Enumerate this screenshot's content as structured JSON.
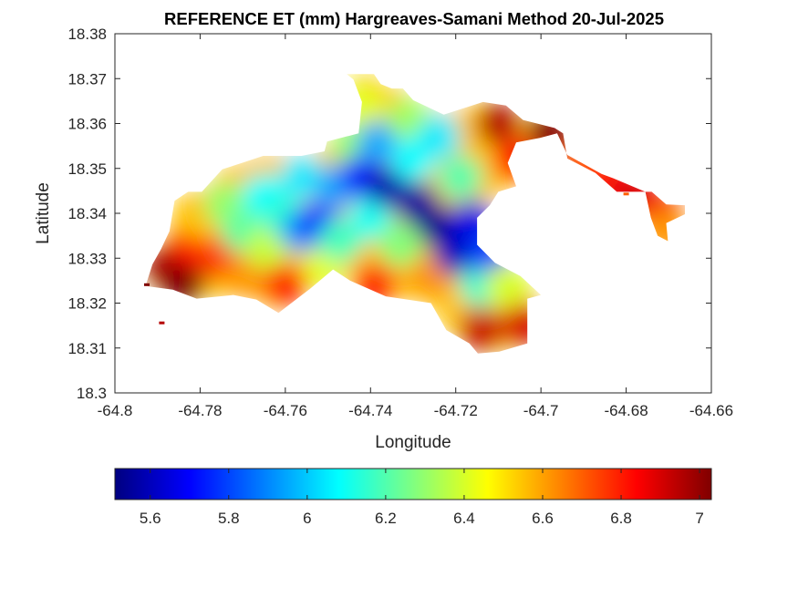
{
  "chart_data": {
    "type": "heatmap",
    "title": "REFERENCE ET (mm) Hargreaves-Samani Method  20-Jul-2025",
    "xlabel": "Longitude",
    "ylabel": "Latitude",
    "xlim": [
      -64.8,
      -64.66
    ],
    "ylim": [
      18.3,
      18.38
    ],
    "x_ticks": [
      -64.8,
      -64.78,
      -64.76,
      -64.74,
      -64.72,
      -64.7,
      -64.68,
      -64.66
    ],
    "x_tick_labels": [
      "-64.8",
      "-64.78",
      "-64.76",
      "-64.74",
      "-64.72",
      "-64.7",
      "-64.68",
      "-64.66"
    ],
    "y_ticks": [
      18.3,
      18.31,
      18.32,
      18.33,
      18.34,
      18.35,
      18.36,
      18.37,
      18.38
    ],
    "y_tick_labels": [
      "18.3",
      "18.31",
      "18.32",
      "18.33",
      "18.34",
      "18.35",
      "18.36",
      "18.37",
      "18.38"
    ],
    "colorbar": {
      "colormap": "jet",
      "range": [
        5.51,
        7.03
      ],
      "ticks": [
        5.6,
        5.8,
        6.0,
        6.2,
        6.4,
        6.6,
        6.8,
        7.0
      ],
      "tick_labels": [
        "5.6",
        "5.8",
        "6",
        "6.2",
        "6.4",
        "6.6",
        "6.8",
        "7"
      ],
      "orientation": "horizontal",
      "placement": "bottom"
    },
    "field": {
      "description_value_units": "mm",
      "outline": [
        [
          -64.7928,
          18.3238
        ],
        [
          -64.7912,
          18.3286
        ],
        [
          -64.7892,
          18.332
        ],
        [
          -64.7872,
          18.336
        ],
        [
          -64.786,
          18.3428
        ],
        [
          -64.7828,
          18.3448
        ],
        [
          -64.7796,
          18.3448
        ],
        [
          -64.7748,
          18.3498
        ],
        [
          -64.7702,
          18.3512
        ],
        [
          -64.7652,
          18.3528
        ],
        [
          -64.7562,
          18.3528
        ],
        [
          -64.7508,
          18.3538
        ],
        [
          -64.7502,
          18.356
        ],
        [
          -64.7428,
          18.3578
        ],
        [
          -64.742,
          18.3648
        ],
        [
          -64.744,
          18.3698
        ],
        [
          -64.7456,
          18.371
        ],
        [
          -64.7392,
          18.371
        ],
        [
          -64.7376,
          18.3688
        ],
        [
          -64.735,
          18.3678
        ],
        [
          -64.7324,
          18.3678
        ],
        [
          -64.73,
          18.3652
        ],
        [
          -64.7228,
          18.362
        ],
        [
          -64.7136,
          18.3648
        ],
        [
          -64.7082,
          18.364
        ],
        [
          -64.7042,
          18.3608
        ],
        [
          -64.6968,
          18.359
        ],
        [
          -64.6948,
          18.3578
        ],
        [
          -64.6938,
          18.3522
        ],
        [
          -64.6872,
          18.349
        ],
        [
          -64.6822,
          18.3448
        ],
        [
          -64.674,
          18.3448
        ],
        [
          -64.6706,
          18.342
        ],
        [
          -64.6662,
          18.3418
        ],
        [
          -64.6662,
          18.3398
        ],
        [
          -64.6706,
          18.3378
        ],
        [
          -64.6702,
          18.3338
        ],
        [
          -64.6726,
          18.335
        ],
        [
          -64.6742,
          18.339
        ],
        [
          -64.6755,
          18.3448
        ],
        [
          -64.683,
          18.3478
        ],
        [
          -64.6858,
          18.3488
        ],
        [
          -64.6938,
          18.353
        ],
        [
          -64.6962,
          18.3578
        ],
        [
          -64.7002,
          18.3568
        ],
        [
          -64.7058,
          18.3558
        ],
        [
          -64.7078,
          18.3512
        ],
        [
          -64.7058,
          18.346
        ],
        [
          -64.71,
          18.3448
        ],
        [
          -64.712,
          18.3418
        ],
        [
          -64.715,
          18.339
        ],
        [
          -64.715,
          18.333
        ],
        [
          -64.7108,
          18.329
        ],
        [
          -64.7048,
          18.326
        ],
        [
          -64.7,
          18.3218
        ],
        [
          -64.7032,
          18.321
        ],
        [
          -64.7032,
          18.311
        ],
        [
          -64.7098,
          18.3092
        ],
        [
          -64.7148,
          18.3088
        ],
        [
          -64.7168,
          18.311
        ],
        [
          -64.7222,
          18.314
        ],
        [
          -64.724,
          18.317
        ],
        [
          -64.7258,
          18.32
        ],
        [
          -64.7364,
          18.3215
        ],
        [
          -64.7448,
          18.325
        ],
        [
          -64.7488,
          18.3275
        ],
        [
          -64.7542,
          18.3232
        ],
        [
          -64.7616,
          18.3178
        ],
        [
          -64.7668,
          18.3208
        ],
        [
          -64.7722,
          18.3218
        ],
        [
          -64.7808,
          18.321
        ],
        [
          -64.7864,
          18.323
        ]
      ],
      "cells": [
        [
          -64.788,
          18.328,
          6.96
        ],
        [
          -64.784,
          18.3245,
          7.03
        ],
        [
          -64.782,
          18.333,
          6.82
        ],
        [
          -64.78,
          18.339,
          6.55
        ],
        [
          -64.776,
          18.33,
          6.75
        ],
        [
          -64.774,
          18.342,
          6.3
        ],
        [
          -64.77,
          18.336,
          6.22
        ],
        [
          -64.769,
          18.326,
          6.62
        ],
        [
          -64.765,
          18.344,
          6.08
        ],
        [
          -64.764,
          18.332,
          6.38
        ],
        [
          -64.76,
          18.324,
          6.8
        ],
        [
          -64.76,
          18.339,
          6.15
        ],
        [
          -64.756,
          18.348,
          6.05
        ],
        [
          -64.756,
          18.336,
          5.92
        ],
        [
          -64.752,
          18.338,
          5.76
        ],
        [
          -64.751,
          18.328,
          6.42
        ],
        [
          -64.748,
          18.346,
          5.95
        ],
        [
          -64.747,
          18.334,
          6.18
        ],
        [
          -64.744,
          18.355,
          6.3
        ],
        [
          -64.742,
          18.364,
          6.42
        ],
        [
          -64.742,
          18.348,
          5.72
        ],
        [
          -64.74,
          18.339,
          6.1
        ],
        [
          -64.739,
          18.324,
          6.78
        ],
        [
          -64.738,
          18.356,
          5.95
        ],
        [
          -64.736,
          18.346,
          5.58
        ],
        [
          -64.733,
          18.333,
          6.28
        ],
        [
          -64.731,
          18.361,
          6.32
        ],
        [
          -64.73,
          18.352,
          6.08
        ],
        [
          -64.729,
          18.342,
          5.56
        ],
        [
          -64.726,
          18.326,
          6.62
        ],
        [
          -64.724,
          18.337,
          5.53
        ],
        [
          -64.724,
          18.357,
          6.05
        ],
        [
          -64.72,
          18.331,
          5.6
        ],
        [
          -64.719,
          18.348,
          6.2
        ],
        [
          -64.716,
          18.338,
          5.66
        ],
        [
          -64.714,
          18.324,
          6.15
        ],
        [
          -64.714,
          18.314,
          6.92
        ],
        [
          -64.712,
          18.331,
          5.8
        ],
        [
          -64.71,
          18.36,
          6.95
        ],
        [
          -64.708,
          18.324,
          6.4
        ],
        [
          -64.706,
          18.352,
          6.82
        ],
        [
          -64.704,
          18.315,
          6.9
        ],
        [
          -64.698,
          18.358,
          7.02
        ],
        [
          -64.69,
          18.352,
          6.72
        ],
        [
          -64.684,
          18.347,
          6.82
        ],
        [
          -64.678,
          18.344,
          6.9
        ],
        [
          -64.672,
          18.34,
          6.85
        ],
        [
          -64.671,
          18.336,
          6.62
        ]
      ],
      "isolated_cells": [
        [
          -64.7925,
          18.324,
          7.03
        ],
        [
          -64.789,
          18.3155,
          6.95
        ],
        [
          -64.68,
          18.3442,
          6.7
        ]
      ]
    }
  }
}
